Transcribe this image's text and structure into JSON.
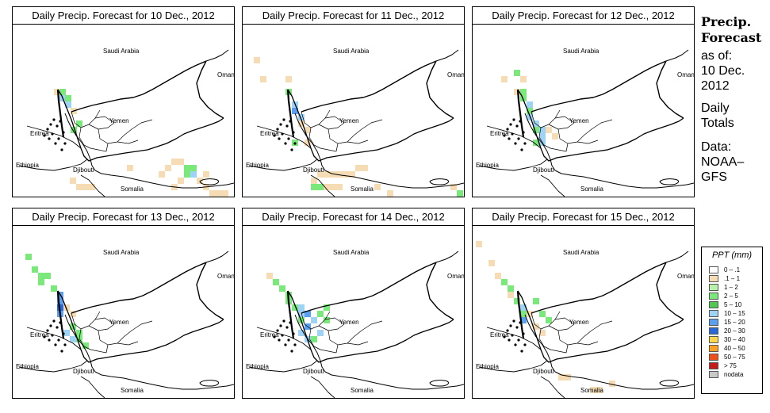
{
  "panels": [
    {
      "title": "Daily Precip. Forecast for  10 Dec., 2012",
      "cells": [
        [
          68,
          112,
          "#f5dcb4"
        ],
        [
          75,
          112,
          "#7ae87a"
        ],
        [
          75,
          120,
          "#9fd3f5"
        ],
        [
          82,
          120,
          "#7ae87a"
        ],
        [
          82,
          128,
          "#9fd3f5"
        ],
        [
          89,
          136,
          "#f5dcb4"
        ],
        [
          96,
          152,
          "#7ae87a"
        ],
        [
          89,
          160,
          "#7ae87a"
        ],
        [
          160,
          208,
          "#f5dcb4"
        ],
        [
          200,
          216,
          "#f5dcb4"
        ],
        [
          208,
          208,
          "#f5dcb4"
        ],
        [
          216,
          200,
          "#f5dcb4"
        ],
        [
          224,
          200,
          "#f5dcb4"
        ],
        [
          232,
          208,
          "#7ae87a"
        ],
        [
          240,
          208,
          "#7ae87a"
        ],
        [
          240,
          216,
          "#9fd3f5"
        ],
        [
          232,
          216,
          "#7ae87a"
        ],
        [
          224,
          224,
          "#f5dcb4"
        ],
        [
          248,
          224,
          "#f5dcb4"
        ],
        [
          256,
          232,
          "#f5dcb4"
        ],
        [
          264,
          240,
          "#f5dcb4"
        ],
        [
          272,
          240,
          "#f5dcb4"
        ],
        [
          280,
          240,
          "#f5dcb4"
        ],
        [
          88,
          224,
          "#f5dcb4"
        ],
        [
          96,
          232,
          "#f5dcb4"
        ],
        [
          104,
          232,
          "#f5dcb4"
        ],
        [
          112,
          232,
          "#f5dcb4"
        ],
        [
          216,
          232,
          "#f5dcb4"
        ],
        [
          256,
          216,
          "#f5dcb4"
        ]
      ]
    },
    {
      "title": "Daily Precip. Forecast for  11 Dec., 2012",
      "cells": [
        [
          320,
          72,
          "#f5dcb4"
        ],
        [
          328,
          96,
          "#f5dcb4"
        ],
        [
          360,
          96,
          "#f5dcb4"
        ],
        [
          360,
          112,
          "#7ae87a"
        ],
        [
          368,
          128,
          "#9fd3f5"
        ],
        [
          368,
          136,
          "#5aa0f0"
        ],
        [
          376,
          144,
          "#9fd3f5"
        ],
        [
          376,
          152,
          "#f5dcb4"
        ],
        [
          384,
          160,
          "#f5dcb4"
        ],
        [
          384,
          176,
          "#f5dcb4"
        ],
        [
          368,
          176,
          "#7ae87a"
        ],
        [
          392,
          224,
          "#f5dcb4"
        ],
        [
          400,
          216,
          "#f5dcb4"
        ],
        [
          408,
          216,
          "#f5dcb4"
        ],
        [
          416,
          216,
          "#f5dcb4"
        ],
        [
          424,
          216,
          "#f5dcb4"
        ],
        [
          432,
          216,
          "#f5dcb4"
        ],
        [
          440,
          216,
          "#f5dcb4"
        ],
        [
          448,
          208,
          "#f5dcb4"
        ],
        [
          456,
          208,
          "#f5dcb4"
        ],
        [
          392,
          232,
          "#7ae87a"
        ],
        [
          400,
          232,
          "#7ae87a"
        ],
        [
          408,
          232,
          "#f5dcb4"
        ],
        [
          416,
          232,
          "#f5dcb4"
        ],
        [
          424,
          232,
          "#f5dcb4"
        ],
        [
          472,
          232,
          "#f5dcb4"
        ],
        [
          488,
          240,
          "#f5dcb4"
        ],
        [
          568,
          232,
          "#f5dcb4"
        ],
        [
          576,
          240,
          "#7ae87a"
        ]
      ]
    },
    {
      "title": "Daily Precip. Forecast for  12 Dec., 2012",
      "cells": [
        [
          632,
          96,
          "#f5dcb4"
        ],
        [
          648,
          88,
          "#7ae87a"
        ],
        [
          656,
          96,
          "#f5dcb4"
        ],
        [
          648,
          112,
          "#f5dcb4"
        ],
        [
          656,
          112,
          "#7ae87a"
        ],
        [
          656,
          120,
          "#7ae87a"
        ],
        [
          664,
          128,
          "#9fd3f5"
        ],
        [
          664,
          136,
          "#7ae87a"
        ],
        [
          664,
          144,
          "#9fd3f5"
        ],
        [
          672,
          152,
          "#9fd3f5"
        ],
        [
          672,
          160,
          "#7ae87a"
        ],
        [
          680,
          160,
          "#9fd3f5"
        ],
        [
          680,
          168,
          "#9fd3f5"
        ],
        [
          672,
          176,
          "#7ae87a"
        ],
        [
          680,
          176,
          "#9fd3f5"
        ],
        [
          688,
          160,
          "#f5dcb4"
        ],
        [
          696,
          168,
          "#f5dcb4"
        ],
        [
          656,
          96,
          "#f5dcb4"
        ]
      ]
    },
    {
      "title": "Daily Precip. Forecast for  13 Dec., 2012",
      "cells": [
        [
          32,
          320,
          "#7ae87a"
        ],
        [
          40,
          336,
          "#7ae87a"
        ],
        [
          48,
          344,
          "#7ae87a"
        ],
        [
          48,
          352,
          "#7ae87a"
        ],
        [
          56,
          344,
          "#7ae87a"
        ],
        [
          64,
          360,
          "#7ae87a"
        ],
        [
          72,
          368,
          "#5aa0f0"
        ],
        [
          72,
          376,
          "#5aa0f0"
        ],
        [
          72,
          384,
          "#2868d8"
        ],
        [
          72,
          392,
          "#5aa0f0"
        ],
        [
          80,
          384,
          "#f5dcb4"
        ],
        [
          88,
          392,
          "#f5dcb4"
        ],
        [
          88,
          408,
          "#7ae87a"
        ],
        [
          96,
          416,
          "#7ae87a"
        ],
        [
          96,
          424,
          "#7ae87a"
        ],
        [
          80,
          416,
          "#9fd3f5"
        ],
        [
          88,
          424,
          "#9fd3f5"
        ],
        [
          104,
          432,
          "#7ae87a"
        ]
      ]
    },
    {
      "title": "Daily Precip. Forecast for  14 Dec., 2012",
      "cells": [
        [
          336,
          344,
          "#f5dcb4"
        ],
        [
          344,
          352,
          "#7ae87a"
        ],
        [
          352,
          360,
          "#7ae87a"
        ],
        [
          360,
          368,
          "#7ae87a"
        ],
        [
          360,
          376,
          "#7ae87a"
        ],
        [
          368,
          384,
          "#7ae87a"
        ],
        [
          376,
          384,
          "#9fd3f5"
        ],
        [
          376,
          392,
          "#9fd3f5"
        ],
        [
          384,
          392,
          "#5aa0f0"
        ],
        [
          392,
          400,
          "#9fd3f5"
        ],
        [
          400,
          392,
          "#7ae87a"
        ],
        [
          408,
          384,
          "#7ae87a"
        ],
        [
          376,
          400,
          "#7ae87a"
        ],
        [
          384,
          408,
          "#5aa0f0"
        ],
        [
          376,
          416,
          "#9fd3f5"
        ],
        [
          384,
          424,
          "#9fd3f5"
        ],
        [
          392,
          424,
          "#7ae87a"
        ],
        [
          400,
          416,
          "#9fd3f5"
        ],
        [
          408,
          400,
          "#7ae87a"
        ]
      ]
    },
    {
      "title": "Daily Precip. Forecast for  15 Dec., 2012",
      "cells": [
        [
          600,
          304,
          "#f5dcb4"
        ],
        [
          616,
          328,
          "#f5dcb4"
        ],
        [
          624,
          344,
          "#f5dcb4"
        ],
        [
          632,
          352,
          "#7ae87a"
        ],
        [
          640,
          360,
          "#7ae87a"
        ],
        [
          640,
          368,
          "#f5dcb4"
        ],
        [
          648,
          376,
          "#7ae87a"
        ],
        [
          656,
          384,
          "#9fd3f5"
        ],
        [
          656,
          392,
          "#7ae87a"
        ],
        [
          656,
          400,
          "#5aa0f0"
        ],
        [
          664,
          392,
          "#f5dcb4"
        ],
        [
          672,
          376,
          "#7ae87a"
        ],
        [
          680,
          392,
          "#7ae87a"
        ],
        [
          672,
          408,
          "#f5dcb4"
        ],
        [
          680,
          416,
          "#f5dcb4"
        ],
        [
          688,
          400,
          "#7ae87a"
        ],
        [
          704,
          472,
          "#f5dcb4"
        ],
        [
          712,
          472,
          "#f5dcb4"
        ],
        [
          744,
          488,
          "#f5dcb4"
        ],
        [
          752,
          488,
          "#f5dcb4"
        ],
        [
          768,
          480,
          "#f5dcb4"
        ]
      ]
    }
  ],
  "labels": {
    "saudi": "Saudi Arabia",
    "oman": "Oman",
    "yemen": "Yemen",
    "eritrea": "Eritrea",
    "ethiopia": "Ethiopia",
    "djibouti": "Djibouti",
    "somalia": "Somalia"
  },
  "side": {
    "title1": "Precip.",
    "title2": "Forecast",
    "asof": "as of:",
    "date1": "10 Dec.",
    "date2": "2012",
    "daily1": "Daily",
    "daily2": "Totals",
    "data1": "Data:",
    "data2": "NOAA–",
    "data3": "GFS"
  },
  "legend": {
    "title": "PPT (mm)",
    "items": [
      {
        "label": "0 – .1",
        "color": "#ffffff"
      },
      {
        "label": ".1 – 1",
        "color": "#f5dcb4"
      },
      {
        "label": "1 – 2",
        "color": "#b7f0a8"
      },
      {
        "label": "2 – 5",
        "color": "#7ae87a"
      },
      {
        "label": "5 – 10",
        "color": "#4ec84e"
      },
      {
        "label": "10 – 15",
        "color": "#9fd3f5"
      },
      {
        "label": "15 – 20",
        "color": "#5aa0f0"
      },
      {
        "label": "20 – 30",
        "color": "#2868d8"
      },
      {
        "label": "30 – 40",
        "color": "#ffd84a"
      },
      {
        "label": "40 – 50",
        "color": "#ffa020"
      },
      {
        "label": "50 – 75",
        "color": "#f05018"
      },
      {
        "label": "> 75",
        "color": "#c81818"
      },
      {
        "label": "nodata",
        "color": "#c8c8c8"
      }
    ]
  }
}
